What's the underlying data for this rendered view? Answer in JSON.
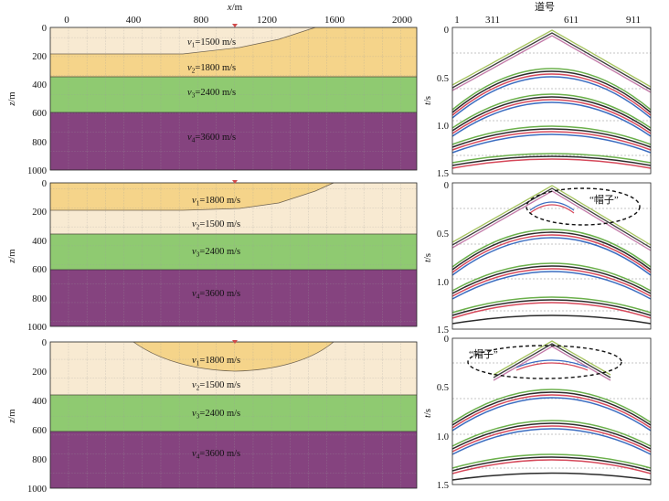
{
  "top_axis": {
    "label_var": "x",
    "label_unit": "/m",
    "ticks": [
      "0",
      "400",
      "800",
      "1200",
      "1600",
      "2000"
    ]
  },
  "trace_axis": {
    "label": "道号",
    "ticks": [
      "1",
      "311",
      "611",
      "911"
    ]
  },
  "depth_axis": {
    "label_var": "z",
    "label_unit": "/m",
    "ticks": [
      "0",
      "200",
      "400",
      "600",
      "800",
      "1000"
    ]
  },
  "time_axis": {
    "label_var": "t",
    "label_unit": "/s",
    "ticks": [
      "0",
      "0.5",
      "1.0",
      "1.5"
    ]
  },
  "colors": {
    "light_layer": "#f8ead2",
    "orange_layer": "#f5d48a",
    "green_layer": "#8fca71",
    "purple_layer": "#85437f",
    "source_marker": "#d04a4a"
  },
  "models": [
    {
      "layers": [
        {
          "sub": "1",
          "speed": "=1500 m/s"
        },
        {
          "sub": "2",
          "speed": "=1800 m/s"
        },
        {
          "sub": "3",
          "speed": "=2400 m/s"
        },
        {
          "sub": "4",
          "speed": "=3600 m/s"
        }
      ]
    },
    {
      "layers": [
        {
          "sub": "1",
          "speed": "=1800 m/s"
        },
        {
          "sub": "2",
          "speed": "=1500 m/s"
        },
        {
          "sub": "3",
          "speed": "=2400 m/s"
        },
        {
          "sub": "4",
          "speed": "=3600 m/s"
        }
      ]
    },
    {
      "layers": [
        {
          "sub": "1",
          "speed": "=1800 m/s"
        },
        {
          "sub": "2",
          "speed": "=1500 m/s"
        },
        {
          "sub": "3",
          "speed": "=2400 m/s"
        },
        {
          "sub": "4",
          "speed": "=3600 m/s"
        }
      ]
    }
  ],
  "annotations": {
    "hat_label": "“帽子”"
  }
}
